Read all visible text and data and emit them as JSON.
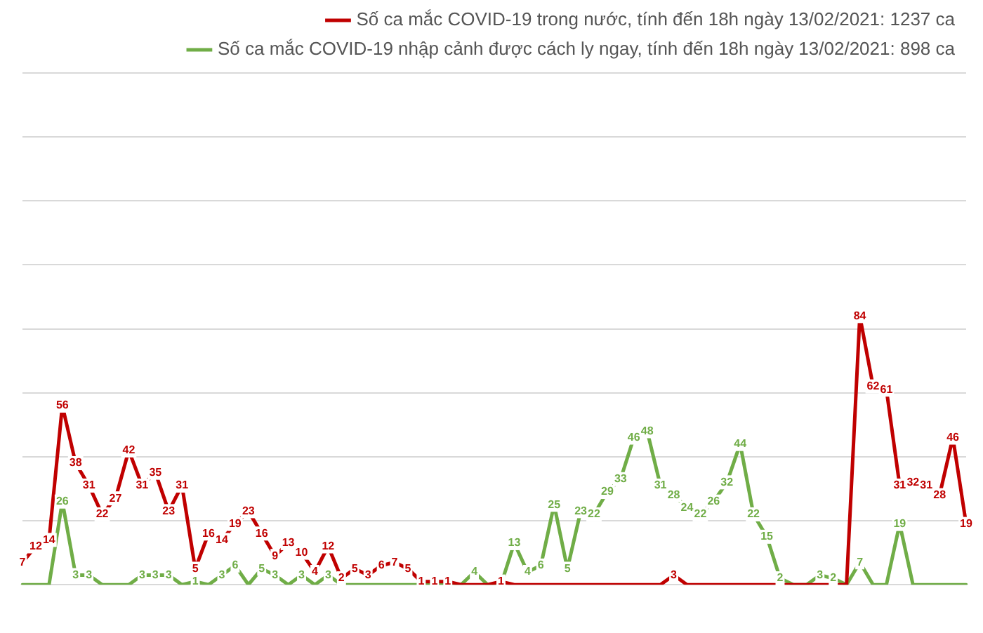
{
  "chart_data": {
    "type": "line",
    "categories": [
      null,
      null,
      null,
      null,
      null,
      null,
      null,
      null,
      null,
      null,
      null,
      null,
      null,
      null,
      null,
      null,
      null,
      null,
      null,
      null,
      null,
      null,
      null,
      null,
      null,
      null,
      null,
      null,
      null,
      null,
      null,
      null,
      null,
      null,
      null,
      null,
      null,
      null,
      null,
      null,
      null,
      null,
      null,
      null,
      null,
      null,
      null,
      null,
      null,
      null,
      null,
      null,
      null,
      null,
      null,
      null,
      null,
      null,
      null,
      null,
      null,
      null,
      null,
      null,
      null,
      null,
      null,
      null,
      null,
      null,
      null,
      null
    ],
    "series": [
      {
        "name": "Số ca mắc COVID-19 trong nước, tính đến 18h ngày 13/02/2021: 1237 ca",
        "color": "#c00000",
        "values": [
          7,
          12,
          14,
          56,
          38,
          31,
          22,
          27,
          42,
          31,
          35,
          23,
          31,
          5,
          16,
          14,
          19,
          23,
          16,
          9,
          13,
          10,
          4,
          12,
          2,
          5,
          3,
          6,
          7,
          5,
          1,
          1,
          1,
          0,
          0,
          0,
          1,
          0,
          0,
          0,
          0,
          0,
          0,
          0,
          0,
          0,
          0,
          0,
          0,
          3,
          0,
          0,
          0,
          0,
          0,
          0,
          0,
          0,
          0,
          0,
          0,
          0,
          0,
          84,
          62,
          61,
          31,
          32,
          31,
          28,
          46,
          19
        ],
        "value_labels": [
          "7",
          "12",
          "14",
          "56",
          "38",
          "31",
          "22",
          "27",
          "42",
          "31",
          "35",
          "23",
          "31",
          "5",
          "16",
          "14",
          "19",
          "23",
          "16",
          "9",
          "13",
          "10",
          "4",
          "12",
          "2",
          "5",
          "3",
          "6",
          "7",
          "5",
          "1",
          "1",
          "1",
          null,
          null,
          null,
          "1",
          null,
          null,
          null,
          null,
          null,
          null,
          null,
          null,
          null,
          null,
          null,
          null,
          "3",
          null,
          null,
          null,
          null,
          null,
          null,
          null,
          null,
          null,
          null,
          null,
          null,
          null,
          "84",
          "62",
          "61",
          "31",
          "32",
          "31",
          "28",
          "46",
          "19"
        ]
      },
      {
        "name": "Số ca mắc COVID-19 nhập cảnh được cách ly ngay, tính đến 18h ngày 13/02/2021: 898 ca",
        "color": "#70ad47",
        "values": [
          0,
          0,
          0,
          26,
          3,
          3,
          0,
          0,
          0,
          3,
          3,
          3,
          0,
          1,
          0,
          3,
          6,
          0,
          5,
          3,
          0,
          3,
          0,
          3,
          0,
          0,
          0,
          0,
          0,
          0,
          0,
          0,
          0,
          0,
          4,
          0,
          0,
          13,
          4,
          6,
          25,
          5,
          23,
          22,
          29,
          33,
          46,
          48,
          31,
          28,
          24,
          22,
          26,
          32,
          44,
          22,
          15,
          2,
          0,
          0,
          3,
          2,
          0,
          7,
          0,
          0,
          19,
          0,
          0,
          0,
          0,
          0
        ],
        "value_labels": [
          null,
          null,
          null,
          "26",
          "3",
          "3",
          null,
          null,
          null,
          "3",
          "3",
          "3",
          null,
          "1",
          null,
          "3",
          "6",
          null,
          "5",
          "3",
          null,
          "3",
          null,
          "3",
          null,
          null,
          null,
          null,
          null,
          null,
          null,
          null,
          null,
          null,
          "4",
          null,
          null,
          "13",
          "4",
          "6",
          "25",
          "5",
          "23",
          "22",
          "29",
          "33",
          "46",
          "48",
          "31",
          "28",
          "24",
          "22",
          "26",
          "32",
          "44",
          "22",
          "15",
          "2",
          null,
          null,
          "3",
          "2",
          null,
          "7",
          null,
          null,
          "19",
          null,
          null,
          null,
          null,
          null
        ]
      }
    ],
    "ylim": [
      0,
      160
    ],
    "yticks": [
      {
        "value": 20,
        "label": null
      },
      {
        "value": 40,
        "label": null
      },
      {
        "value": 60,
        "label": null
      },
      {
        "value": 80,
        "label": null
      },
      {
        "value": 100,
        "label": null
      },
      {
        "value": 120,
        "label": null
      },
      {
        "value": 140,
        "label": null
      },
      {
        "value": 160,
        "label": null
      }
    ],
    "grid": "y",
    "legend": "top right",
    "line_style": "solid"
  }
}
